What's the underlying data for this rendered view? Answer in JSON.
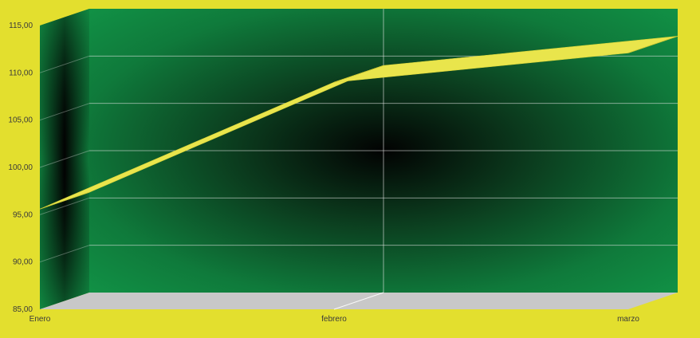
{
  "chart_data": {
    "type": "line",
    "style": "3d-ribbon",
    "categories": [
      "Enero",
      "febrero",
      "marzo"
    ],
    "series": [
      {
        "values": [
          95.6,
          109.0,
          112.1
        ]
      }
    ],
    "ylim": [
      85,
      115
    ],
    "yticks": [
      "85,00",
      "90,00",
      "95,00",
      "100,00",
      "105,00",
      "110,00",
      "115,00"
    ],
    "title": "",
    "xlabel": "",
    "ylabel": "",
    "grid": true,
    "legend": "none",
    "colors": {
      "background": "#e3df2e",
      "wall_green": "#119045",
      "wall_dark": "#020202",
      "floor": "#c8c8c8",
      "ribbon_top": "#e9e54c",
      "ribbon_front": "#d8d43a",
      "gridline": "#e8e8e8",
      "axis_text": "#3a3a3a"
    }
  }
}
